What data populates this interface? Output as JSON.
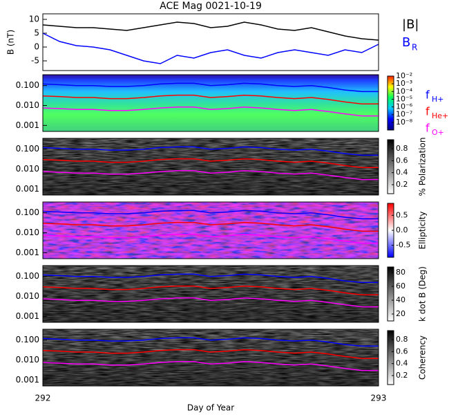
{
  "title": "ACE Mag 0021-10-19",
  "xlabel": "Day of Year",
  "xlim": [
    292,
    293
  ],
  "xticks": [
    292,
    293
  ],
  "x": [
    292,
    292.05,
    292.1,
    292.15,
    292.2,
    292.25,
    292.3,
    292.35,
    292.4,
    292.45,
    292.5,
    292.55,
    292.6,
    292.65,
    292.7,
    292.75,
    292.8,
    292.85,
    292.9,
    292.95,
    293
  ],
  "frequency_lines": {
    "log": true,
    "ylim": [
      0.0005,
      0.35
    ],
    "yticks": [
      {
        "value": 0.1,
        "label": "0.100"
      },
      {
        "value": 0.01,
        "label": "0.010"
      },
      {
        "value": 0.001,
        "label": "0.001"
      }
    ],
    "series": [
      {
        "name": "f",
        "subscript": "H+",
        "color": "#0000ff",
        "values": [
          0.12,
          0.11,
          0.1,
          0.1,
          0.09,
          0.09,
          0.1,
          0.12,
          0.13,
          0.13,
          0.1,
          0.11,
          0.13,
          0.12,
          0.1,
          0.09,
          0.1,
          0.08,
          0.06,
          0.05,
          0.05
        ]
      },
      {
        "name": "f",
        "subscript": "He+",
        "color": "#ff0000",
        "values": [
          0.03,
          0.028,
          0.025,
          0.025,
          0.022,
          0.022,
          0.025,
          0.03,
          0.033,
          0.033,
          0.025,
          0.028,
          0.033,
          0.03,
          0.025,
          0.022,
          0.025,
          0.02,
          0.015,
          0.012,
          0.012
        ]
      },
      {
        "name": "f",
        "subscript": "O+",
        "color": "#ff00ff",
        "values": [
          0.0075,
          0.007,
          0.0063,
          0.0063,
          0.0056,
          0.0056,
          0.0063,
          0.0075,
          0.0083,
          0.0083,
          0.0063,
          0.007,
          0.0083,
          0.0075,
          0.0063,
          0.0056,
          0.0063,
          0.005,
          0.0038,
          0.003,
          0.003
        ]
      }
    ]
  },
  "chart_data": [
    {
      "type": "line",
      "ylabel": "B (nT)",
      "ylim": [
        -8.5,
        12
      ],
      "yticks": [
        -5,
        0,
        5,
        10
      ],
      "series": [
        {
          "name": "|B|",
          "color": "#000000",
          "values": [
            8,
            7.5,
            7,
            7,
            6.5,
            6,
            7,
            8,
            9,
            8.5,
            7,
            7.5,
            9,
            8,
            6.5,
            6,
            7,
            5.5,
            4,
            3,
            2.5
          ]
        },
        {
          "name": "B",
          "subscript": "R",
          "color": "#0000ff",
          "values": [
            5,
            2,
            0.5,
            0,
            -1,
            -3,
            -5,
            -6,
            -3,
            -4,
            -2,
            -1,
            -3,
            -4,
            -2,
            -1,
            -2,
            -3,
            -1,
            -2,
            1
          ]
        }
      ]
    },
    {
      "type": "spectrogram",
      "colormap": "rainbow",
      "colorbar": {
        "log": true,
        "lim": [
          1e-09,
          0.01
        ],
        "ticks": [
          {
            "value": 0.01,
            "label": "10⁻²"
          },
          {
            "value": 0.001,
            "label": "10⁻³"
          },
          {
            "value": 0.0001,
            "label": "10⁻⁴"
          },
          {
            "value": 1e-05,
            "label": "10⁻⁵"
          },
          {
            "value": 1e-06,
            "label": "10⁻⁶"
          },
          {
            "value": 1e-07,
            "label": "10⁻⁷"
          },
          {
            "value": 1e-08,
            "label": "10⁻⁸"
          }
        ]
      }
    },
    {
      "type": "spectrogram",
      "colormap": "gray",
      "colorbar": {
        "label": "% Polarization",
        "lim": [
          0.05,
          0.95
        ],
        "ticks": [
          0.2,
          0.4,
          0.6,
          0.8
        ]
      }
    },
    {
      "type": "spectrogram",
      "colormap": "bwr",
      "colorbar": {
        "label": "Ellipticity",
        "lim": [
          -0.9,
          0.9
        ],
        "ticks": [
          -0.5,
          {
            "value": 0,
            "label": "0.0"
          },
          0.5
        ]
      }
    },
    {
      "type": "spectrogram",
      "colormap": "gray",
      "colorbar": {
        "label": "k dot B (Deg)",
        "lim": [
          10,
          88
        ],
        "ticks": [
          20,
          40,
          60,
          80
        ]
      }
    },
    {
      "type": "spectrogram",
      "colormap": "gray",
      "colorbar": {
        "label": "Coherency",
        "lim": [
          0.05,
          0.95
        ],
        "ticks": [
          0.2,
          0.4,
          0.6,
          0.8
        ]
      }
    }
  ]
}
